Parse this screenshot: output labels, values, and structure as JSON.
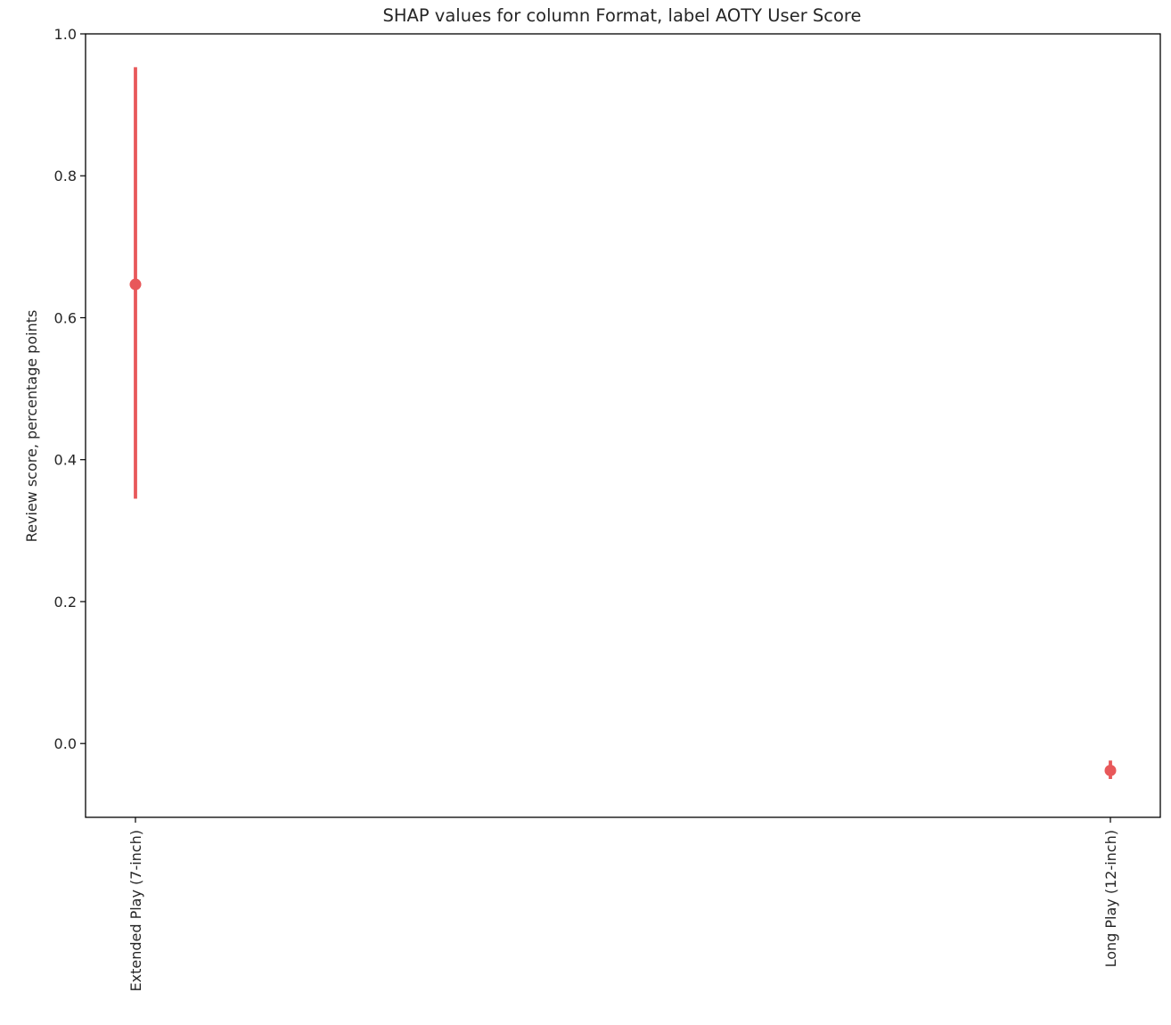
{
  "chart_data": {
    "type": "scatter",
    "title": "SHAP values for column Format, label AOTY User Score",
    "xlabel": "",
    "ylabel": "Review score, percentage points",
    "categories": [
      "Extended Play (7-inch)",
      "Long Play (12-inch)"
    ],
    "series": [
      {
        "values": [
          0.647,
          -0.038
        ],
        "error_low": [
          0.345,
          -0.05
        ],
        "error_high": [
          0.953,
          -0.024
        ],
        "color": "#e8585a"
      }
    ],
    "ylim": [
      -0.104,
      1.0
    ],
    "yticks": [
      0.0,
      0.2,
      0.4,
      0.6,
      0.8,
      1.0
    ],
    "ytick_labels": [
      "0.0",
      "0.2",
      "0.4",
      "0.6",
      "0.8",
      "1.0"
    ],
    "xtick_rotation": "vertical",
    "grid": false,
    "legend": "none"
  }
}
